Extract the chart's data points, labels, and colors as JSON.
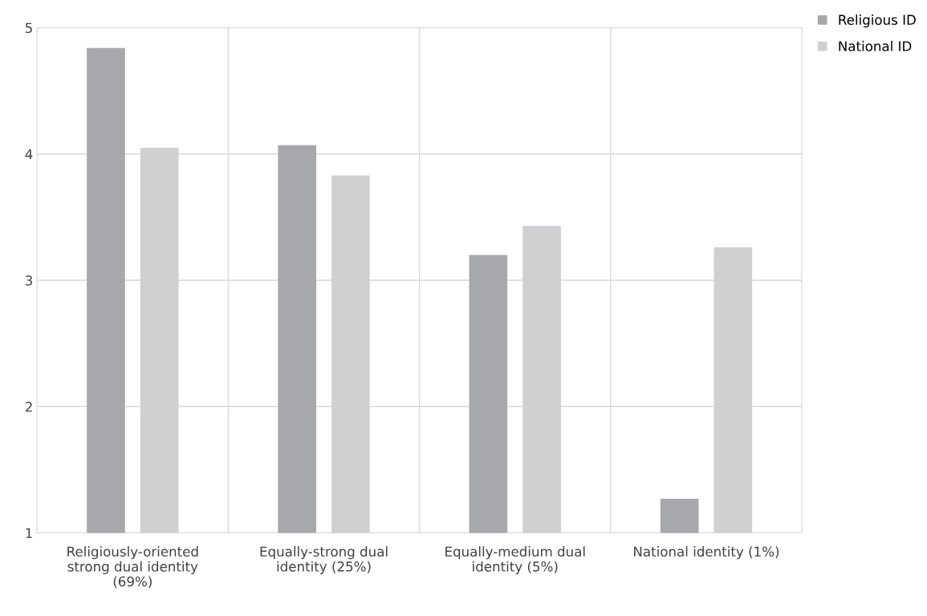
{
  "chart_data": {
    "type": "bar",
    "categories": [
      "Religiously-oriented\nstrong dual identity\n(69%)",
      "Equally-strong dual\nidentity (25%)",
      "Equally-medium dual\nidentity (5%)",
      "National identity (1%)"
    ],
    "series": [
      {
        "name": "Religious ID",
        "color": "#a7a8ab",
        "values": [
          4.84,
          4.07,
          3.2,
          1.27
        ]
      },
      {
        "name": "National ID",
        "color": "#cfd0d2",
        "values": [
          4.05,
          3.83,
          3.43,
          3.26
        ]
      }
    ],
    "ylim": [
      1,
      5
    ],
    "yticks": [
      1,
      2,
      3,
      4,
      5
    ],
    "grid": true,
    "legend": "top right"
  }
}
